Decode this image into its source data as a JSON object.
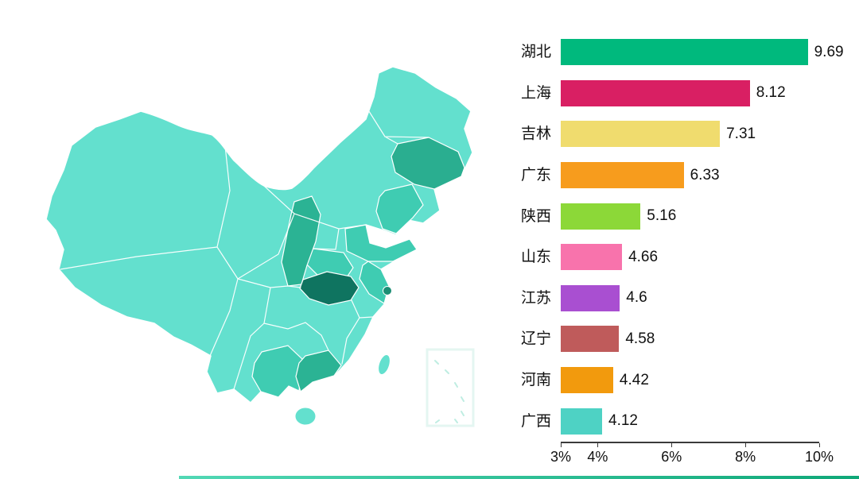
{
  "page": {
    "background": "#FFFFFF",
    "footer_rule_colors": [
      "#52D8B5",
      "#0FA878"
    ]
  },
  "chart_data": {
    "type": "bar",
    "orientation": "horizontal",
    "title": "",
    "xlabel": "",
    "ylabel": "",
    "grid": false,
    "legend": null,
    "categories": [
      "湖北",
      "上海",
      "吉林",
      "广东",
      "陕西",
      "山东",
      "江苏",
      "辽宁",
      "河南",
      "广西"
    ],
    "values": [
      9.69,
      8.12,
      7.31,
      6.33,
      5.16,
      4.66,
      4.6,
      4.58,
      4.42,
      4.12
    ],
    "value_labels": [
      "9.69",
      "8.12",
      "7.31",
      "6.33",
      "5.16",
      "4.66",
      "4.6",
      "4.58",
      "4.42",
      "4.12"
    ],
    "bar_colors": [
      "#00B97D",
      "#D91F63",
      "#F0DC6E",
      "#F79C1D",
      "#8CD838",
      "#F873AC",
      "#A94FD1",
      "#BF5B5B",
      "#F29A0D",
      "#4ED2C4"
    ],
    "xlim": [
      3,
      10
    ],
    "x_ticks": [
      {
        "value": 3,
        "label": "3%"
      },
      {
        "value": 4,
        "label": "4%"
      },
      {
        "value": 6,
        "label": "6%"
      },
      {
        "value": 8,
        "label": "8%"
      },
      {
        "value": 10,
        "label": "10%"
      }
    ]
  },
  "map": {
    "description": "China province choropleth shaded by the bar-chart values",
    "colors": {
      "base": "#63E0CE",
      "tier_light": "#3FCCB2",
      "tier_mid": "#2BB394",
      "jilin": "#2AAE90",
      "shanghai": "#1B8E74",
      "hubei": "#0F7460",
      "stroke": "#FFFFFF",
      "inset_box_edge": "#E4F6F1",
      "inset_marks": "#BFEDE2"
    },
    "highlighted_regions": [
      "湖北",
      "上海",
      "吉林",
      "广东",
      "陕西",
      "山东",
      "江苏",
      "辽宁",
      "河南",
      "广西"
    ]
  }
}
